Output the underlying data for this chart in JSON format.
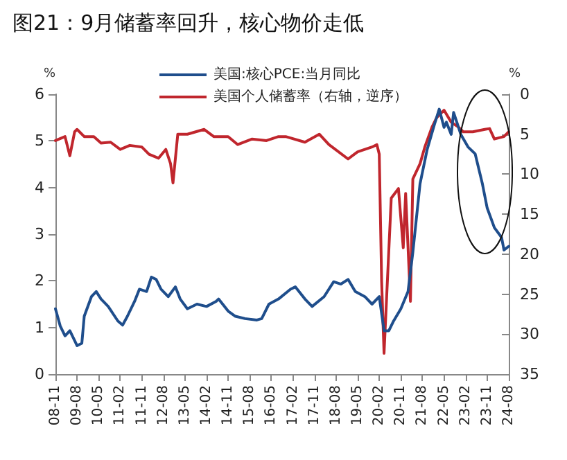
{
  "chart_data": {
    "type": "line",
    "title": "图21：9月储蓄率回升，核心物价走低",
    "ylabel": "%",
    "y2label": "%",
    "ylim": [
      0,
      6
    ],
    "yticks": [
      0,
      1,
      2,
      3,
      4,
      5,
      6
    ],
    "y2lim": [
      35,
      0
    ],
    "y2ticks": [
      0,
      5,
      10,
      15,
      20,
      25,
      30,
      35
    ],
    "xlim": [
      "2008-11",
      "2024-08"
    ],
    "xticks": [
      {
        "value": "2008-11",
        "label": "08-11"
      },
      {
        "value": "2009-08",
        "label": "09-08"
      },
      {
        "value": "2010-05",
        "label": "10-05"
      },
      {
        "value": "2011-02",
        "label": "11-02"
      },
      {
        "value": "2011-11",
        "label": "11-11"
      },
      {
        "value": "2012-08",
        "label": "12-08"
      },
      {
        "value": "2013-05",
        "label": "13-05"
      },
      {
        "value": "2014-02",
        "label": "14-02"
      },
      {
        "value": "2014-11",
        "label": "14-11"
      },
      {
        "value": "2015-08",
        "label": "15-08"
      },
      {
        "value": "2016-05",
        "label": "16-05"
      },
      {
        "value": "2017-02",
        "label": "17-02"
      },
      {
        "value": "2017-11",
        "label": "17-11"
      },
      {
        "value": "2018-08",
        "label": "18-08"
      },
      {
        "value": "2019-05",
        "label": "19-05"
      },
      {
        "value": "2020-02",
        "label": "20-02"
      },
      {
        "value": "2020-11",
        "label": "20-11"
      },
      {
        "value": "2021-08",
        "label": "21-08"
      },
      {
        "value": "2022-05",
        "label": "22-05"
      },
      {
        "value": "2023-02",
        "label": "23-02"
      },
      {
        "value": "2023-11",
        "label": "23-11"
      },
      {
        "value": "2024-08",
        "label": "24-08"
      }
    ],
    "grid": false,
    "legend": "top",
    "marker": "none",
    "line_style": "solid",
    "series": [
      {
        "name": "美国:核心PCE:当月同比",
        "color": "#1f4e8c",
        "x": [
          "2008-11",
          "2009-01",
          "2009-03",
          "2009-05",
          "2009-07",
          "2009-08",
          "2009-10",
          "2009-11",
          "2010-02",
          "2010-04",
          "2010-06",
          "2010-09",
          "2011-01",
          "2011-03",
          "2011-05",
          "2011-08",
          "2011-10",
          "2012-01",
          "2012-03",
          "2012-05",
          "2012-07",
          "2012-10",
          "2013-01",
          "2013-03",
          "2013-06",
          "2013-10",
          "2014-02",
          "2014-06",
          "2014-07",
          "2014-11",
          "2015-02",
          "2015-06",
          "2015-11",
          "2016-01",
          "2016-04",
          "2016-08",
          "2017-01",
          "2017-03",
          "2017-07",
          "2017-10",
          "2018-03",
          "2018-07",
          "2018-10",
          "2019-01",
          "2019-04",
          "2019-08",
          "2019-11",
          "2020-02",
          "2020-04",
          "2020-06",
          "2020-08",
          "2020-11",
          "2021-02",
          "2021-04",
          "2021-07",
          "2021-10",
          "2022-01",
          "2022-03",
          "2022-05",
          "2022-06",
          "2022-08",
          "2022-09",
          "2022-12",
          "2023-03",
          "2023-06",
          "2023-09",
          "2023-11",
          "2024-02",
          "2024-05",
          "2024-06",
          "2024-08"
        ],
        "values": [
          1.4,
          1.03,
          0.82,
          0.93,
          0.72,
          0.61,
          0.66,
          1.24,
          1.66,
          1.77,
          1.61,
          1.45,
          1.14,
          1.05,
          1.24,
          1.56,
          1.82,
          1.77,
          2.08,
          2.03,
          1.82,
          1.66,
          1.87,
          1.61,
          1.4,
          1.5,
          1.45,
          1.56,
          1.61,
          1.35,
          1.24,
          1.19,
          1.16,
          1.19,
          1.5,
          1.61,
          1.82,
          1.87,
          1.61,
          1.45,
          1.66,
          1.98,
          1.93,
          2.03,
          1.77,
          1.66,
          1.5,
          1.66,
          0.93,
          0.93,
          1.14,
          1.4,
          1.77,
          2.61,
          4.08,
          4.82,
          5.35,
          5.68,
          5.29,
          5.4,
          5.14,
          5.61,
          5.14,
          4.87,
          4.72,
          4.08,
          3.56,
          3.14,
          2.93,
          2.66,
          2.74
        ]
      },
      {
        "name": "美国个人储蓄率（右轴，逆序）",
        "color": "#c0262d",
        "axis": "y2",
        "x": [
          "2008-11",
          "2009-03",
          "2009-05",
          "2009-07",
          "2009-08",
          "2009-11",
          "2010-03",
          "2010-06",
          "2010-10",
          "2011-02",
          "2011-06",
          "2011-11",
          "2012-02",
          "2012-06",
          "2012-09",
          "2012-11",
          "2012-12",
          "2013-02",
          "2013-06",
          "2014-01",
          "2014-05",
          "2014-11",
          "2015-03",
          "2015-09",
          "2016-03",
          "2016-08",
          "2016-11",
          "2017-07",
          "2018-01",
          "2018-05",
          "2019-01",
          "2019-05",
          "2019-11",
          "2020-01",
          "2020-02",
          "2020-03",
          "2020-04",
          "2020-05",
          "2020-07",
          "2020-10",
          "2020-12",
          "2021-01",
          "2021-03",
          "2021-04",
          "2021-07",
          "2021-09",
          "2021-12",
          "2022-02",
          "2022-03",
          "2022-05",
          "2022-08",
          "2022-11",
          "2023-01",
          "2023-05",
          "2023-10",
          "2023-12",
          "2024-02",
          "2024-06",
          "2024-08"
        ],
        "values": [
          5.8,
          5.3,
          7.7,
          4.7,
          4.4,
          5.3,
          5.3,
          6.1,
          6.0,
          6.9,
          6.4,
          6.6,
          7.5,
          8.0,
          6.9,
          8.7,
          11.1,
          5.0,
          5.0,
          4.4,
          5.3,
          5.3,
          6.3,
          5.6,
          5.8,
          5.3,
          5.3,
          6.0,
          5.0,
          6.3,
          8.1,
          7.2,
          6.6,
          6.3,
          7.5,
          23.5,
          32.4,
          25.9,
          13.0,
          11.8,
          19.2,
          12.4,
          25.9,
          10.6,
          8.7,
          6.6,
          4.1,
          2.9,
          2.6,
          2.0,
          3.5,
          4.1,
          4.7,
          4.7,
          4.4,
          4.3,
          5.6,
          5.3,
          4.7
        ]
      }
    ]
  }
}
